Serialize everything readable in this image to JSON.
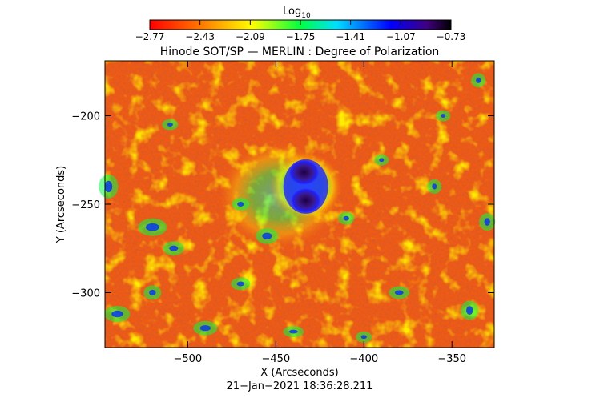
{
  "colorbar": {
    "title": "Log",
    "title_sub": "10",
    "ticks": [
      "−2.77",
      "−2.43",
      "−2.09",
      "−1.75",
      "−1.41",
      "−1.07",
      "−0.73"
    ],
    "range": [
      -2.77,
      -0.73
    ],
    "colormap": [
      "#ff0000",
      "#ff7f00",
      "#ffff00",
      "#00ff00",
      "#00ffff",
      "#0000ff",
      "#000000"
    ]
  },
  "chart_data": {
    "type": "heatmap",
    "title": "Hinode SOT/SP — MERLIN : Degree of Polarization",
    "xlabel": "X (Arcseconds)",
    "ylabel": "Y (Arcseconds)",
    "xlim": [
      -547,
      -326
    ],
    "ylim": [
      -331,
      -169
    ],
    "xticks": [
      -500,
      -450,
      -400,
      -350
    ],
    "xtick_labels": [
      "−500",
      "−450",
      "−400",
      "−350"
    ],
    "yticks": [
      -200,
      -250,
      -300
    ],
    "ytick_labels": [
      "−200",
      "−250",
      "−300"
    ],
    "background_log10": -2.3,
    "features": [
      {
        "name": "sunspot umbra",
        "x": -434,
        "y": -232,
        "log10": -0.85
      },
      {
        "name": "sunspot umbra",
        "x": -433,
        "y": -248,
        "log10": -0.85
      },
      {
        "name": "penumbra",
        "x": -433,
        "y": -240,
        "log10": -1.1
      },
      {
        "name": "plage",
        "x": -448,
        "y": -245,
        "log10": -1.8
      }
    ]
  },
  "footer": {
    "timestamp": "21−Jan−2021 18:36:28.211"
  }
}
